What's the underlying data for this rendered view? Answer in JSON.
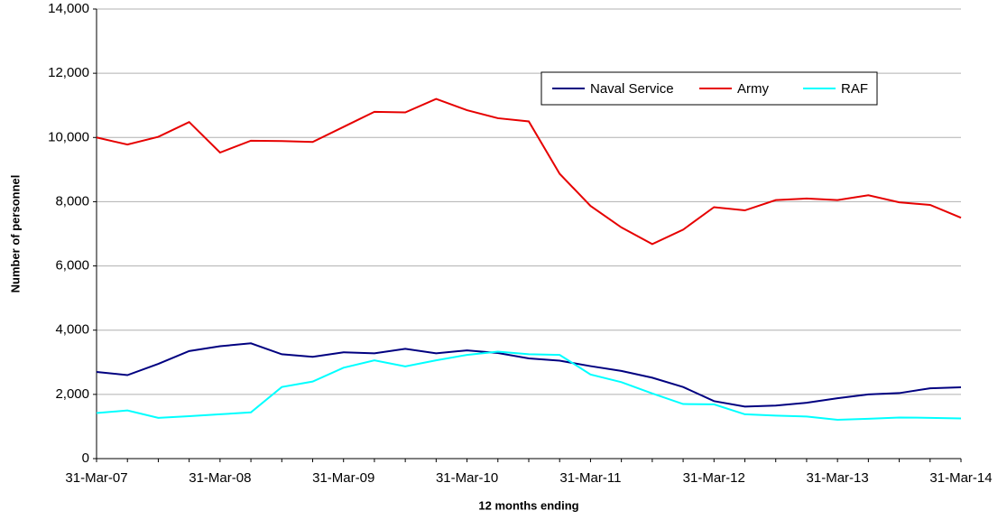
{
  "chart_data": {
    "type": "line",
    "x_label": "12 months ending",
    "y_label": "Number of personnel",
    "categories": [
      "31-Mar-07",
      null,
      null,
      null,
      "31-Mar-08",
      null,
      null,
      null,
      "31-Mar-09",
      null,
      null,
      null,
      "31-Mar-10",
      null,
      null,
      null,
      "31-Mar-11",
      null,
      null,
      null,
      "31-Mar-12",
      null,
      null,
      null,
      "31-Mar-13",
      null,
      null,
      null,
      "31-Mar-14"
    ],
    "series": [
      {
        "name": "Naval Service",
        "color": "#000080",
        "values": [
          2700,
          2600,
          2950,
          3350,
          3500,
          3590,
          3250,
          3170,
          3310,
          3280,
          3420,
          3280,
          3370,
          3290,
          3120,
          3050,
          2880,
          2730,
          2520,
          2230,
          1790,
          1620,
          1650,
          1740,
          1880,
          2000,
          2040,
          2190,
          2220
        ]
      },
      {
        "name": "Army",
        "color": "#e60000",
        "values": [
          10000,
          9780,
          10020,
          10480,
          9530,
          9900,
          9890,
          9860,
          10330,
          10800,
          10780,
          11200,
          10850,
          10600,
          10500,
          8870,
          7870,
          7200,
          6680,
          7130,
          7830,
          7730,
          8050,
          8100,
          8050,
          8200,
          7980,
          7900,
          7500
        ]
      },
      {
        "name": "RAF",
        "color": "#00ffff",
        "values": [
          1420,
          1500,
          1270,
          1320,
          1380,
          1440,
          2230,
          2400,
          2830,
          3060,
          2870,
          3060,
          3230,
          3330,
          3250,
          3230,
          2620,
          2380,
          2030,
          1700,
          1690,
          1380,
          1340,
          1310,
          1210,
          1240,
          1280,
          1270,
          1250
        ]
      }
    ],
    "ylim": [
      0,
      14000
    ],
    "yticks": [
      0,
      {
        "value": 2000,
        "label": "2,000"
      },
      {
        "value": 4000,
        "label": "4,000"
      },
      {
        "value": 6000,
        "label": "6,000"
      },
      {
        "value": 8000,
        "label": "8,000"
      },
      {
        "value": 10000,
        "label": "10,000"
      },
      {
        "value": 12000,
        "label": "12,000"
      },
      {
        "value": 14000,
        "label": "14,000"
      }
    ],
    "grid": true
  }
}
